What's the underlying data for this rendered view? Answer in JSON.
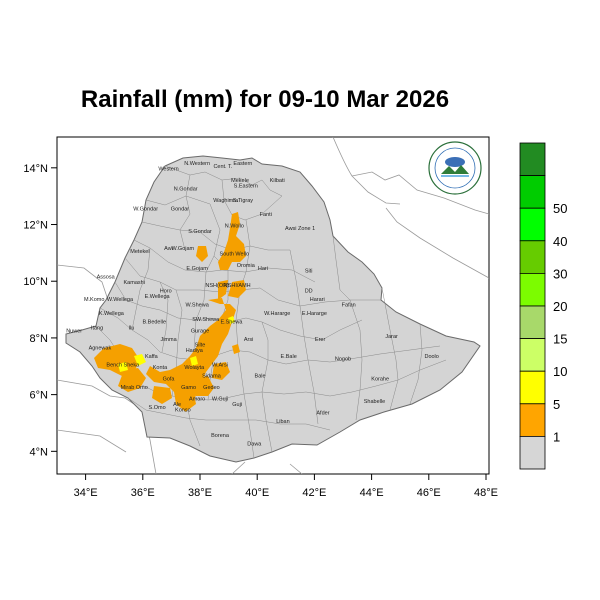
{
  "title": "Rainfall (mm) for 09-10 Mar 2026",
  "colors": {
    "land": "#d4d4d4",
    "border": "#7a7a7a",
    "rain_orange": "#f5a000",
    "rain_yellow": "#ffff00",
    "frame": "#000000"
  },
  "axes": {
    "x_ticks": [
      "34°E",
      "36°E",
      "38°E",
      "40°E",
      "42°E",
      "44°E",
      "46°E",
      "48°E"
    ],
    "y_ticks": [
      "14°N",
      "12°N",
      "10°N",
      "8°N",
      "6°N",
      "4°N"
    ]
  },
  "legend": {
    "labels": [
      "1",
      "5",
      "10",
      "15",
      "20",
      "30",
      "40",
      "50"
    ],
    "colors": [
      "#d6d6d6",
      "#ffa500",
      "#ffff00",
      "#ccff66",
      "#a8d96a",
      "#7cfc00",
      "#66cc00",
      "#00ff00",
      "#00cc00",
      "#228b22"
    ]
  },
  "regions": [
    {
      "name": "Western",
      "lon": 36.9,
      "lat": 13.9
    },
    {
      "name": "N.Western",
      "lon": 37.9,
      "lat": 14.1
    },
    {
      "name": "Cent. T.",
      "lon": 38.8,
      "lat": 14.0
    },
    {
      "name": "Eastern",
      "lon": 39.5,
      "lat": 14.1
    },
    {
      "name": "Mekele",
      "lon": 39.4,
      "lat": 13.5
    },
    {
      "name": "S.Eastern",
      "lon": 39.6,
      "lat": 13.3
    },
    {
      "name": "N.Gondar",
      "lon": 37.5,
      "lat": 13.2
    },
    {
      "name": "Kilbati",
      "lon": 40.7,
      "lat": 13.5
    },
    {
      "name": "S.Tigray",
      "lon": 39.5,
      "lat": 12.8
    },
    {
      "name": "Waghimra",
      "lon": 38.9,
      "lat": 12.8
    },
    {
      "name": "W.Gondar",
      "lon": 36.1,
      "lat": 12.5
    },
    {
      "name": "Gondar",
      "lon": 37.3,
      "lat": 12.5
    },
    {
      "name": "Fanti",
      "lon": 40.3,
      "lat": 12.3
    },
    {
      "name": "N.Wollo",
      "lon": 39.2,
      "lat": 11.9
    },
    {
      "name": "Awsi Zone 1",
      "lon": 41.5,
      "lat": 11.8
    },
    {
      "name": "S.Gondar",
      "lon": 38.0,
      "lat": 11.7
    },
    {
      "name": "Metekel",
      "lon": 35.9,
      "lat": 11.0
    },
    {
      "name": "Awi",
      "lon": 36.9,
      "lat": 11.1
    },
    {
      "name": "W.Gojam",
      "lon": 37.4,
      "lat": 11.1
    },
    {
      "name": "South Wello",
      "lon": 39.2,
      "lat": 10.9
    },
    {
      "name": "Oromia",
      "lon": 39.6,
      "lat": 10.5
    },
    {
      "name": "Hari",
      "lon": 40.2,
      "lat": 10.4
    },
    {
      "name": "E.Gojam",
      "lon": 37.9,
      "lat": 10.4
    },
    {
      "name": "Siti",
      "lon": 41.8,
      "lat": 10.3
    },
    {
      "name": "Assosa",
      "lon": 34.7,
      "lat": 10.1
    },
    {
      "name": "Kamashi",
      "lon": 35.7,
      "lat": 9.9
    },
    {
      "name": "Horo",
      "lon": 36.8,
      "lat": 9.6
    },
    {
      "name": "NSHI/AMH",
      "lon": 39.3,
      "lat": 9.8
    },
    {
      "name": "NSH(OR)",
      "lon": 38.6,
      "lat": 9.8
    },
    {
      "name": "DD",
      "lon": 41.8,
      "lat": 9.6
    },
    {
      "name": "Harari",
      "lon": 42.1,
      "lat": 9.3
    },
    {
      "name": "M.Komo",
      "lon": 34.3,
      "lat": 9.3
    },
    {
      "name": "W.Wellega",
      "lon": 35.2,
      "lat": 9.3
    },
    {
      "name": "E.Wellega",
      "lon": 36.5,
      "lat": 9.4
    },
    {
      "name": "W.Shewa",
      "lon": 37.9,
      "lat": 9.1
    },
    {
      "name": "Fafan",
      "lon": 43.2,
      "lat": 9.1
    },
    {
      "name": "K.Wellega",
      "lon": 34.9,
      "lat": 8.8
    },
    {
      "name": "W.Hararge",
      "lon": 40.7,
      "lat": 8.8
    },
    {
      "name": "E.Hararge",
      "lon": 42.0,
      "lat": 8.8
    },
    {
      "name": "B.Bedelle",
      "lon": 36.4,
      "lat": 8.5
    },
    {
      "name": "SW.Shewa",
      "lon": 38.2,
      "lat": 8.6
    },
    {
      "name": "E.Shewa",
      "lon": 39.1,
      "lat": 8.5
    },
    {
      "name": "Ilu",
      "lon": 35.6,
      "lat": 8.3
    },
    {
      "name": "Itang",
      "lon": 34.4,
      "lat": 8.3
    },
    {
      "name": "Nuwer",
      "lon": 33.6,
      "lat": 8.2
    },
    {
      "name": "Gurage",
      "lon": 38.0,
      "lat": 8.2
    },
    {
      "name": "Jarar",
      "lon": 44.7,
      "lat": 8.0
    },
    {
      "name": "Jimma",
      "lon": 36.9,
      "lat": 7.9
    },
    {
      "name": "Arsi",
      "lon": 39.7,
      "lat": 7.9
    },
    {
      "name": "Erer",
      "lon": 42.2,
      "lat": 7.9
    },
    {
      "name": "Agnewak",
      "lon": 34.5,
      "lat": 7.6
    },
    {
      "name": "Silte",
      "lon": 38.0,
      "lat": 7.7
    },
    {
      "name": "Hadiya",
      "lon": 37.8,
      "lat": 7.5
    },
    {
      "name": "Kaffa",
      "lon": 36.3,
      "lat": 7.3
    },
    {
      "name": "E.Bale",
      "lon": 41.1,
      "lat": 7.3
    },
    {
      "name": "Nogob",
      "lon": 43.0,
      "lat": 7.2
    },
    {
      "name": "Doolo",
      "lon": 46.1,
      "lat": 7.3
    },
    {
      "name": "Bench Sheka",
      "lon": 35.3,
      "lat": 7.0
    },
    {
      "name": "Konta",
      "lon": 36.6,
      "lat": 6.9
    },
    {
      "name": "Wolayta",
      "lon": 37.8,
      "lat": 6.9
    },
    {
      "name": "W.Arsi",
      "lon": 38.7,
      "lat": 7.0
    },
    {
      "name": "Korahe",
      "lon": 44.3,
      "lat": 6.5
    },
    {
      "name": "Bale",
      "lon": 40.1,
      "lat": 6.6
    },
    {
      "name": "Gofa",
      "lon": 36.9,
      "lat": 6.5
    },
    {
      "name": "Sidama",
      "lon": 38.4,
      "lat": 6.6
    },
    {
      "name": "Mirab Omo",
      "lon": 35.7,
      "lat": 6.2
    },
    {
      "name": "Gamo",
      "lon": 37.6,
      "lat": 6.2
    },
    {
      "name": "Gedeo",
      "lon": 38.4,
      "lat": 6.2
    },
    {
      "name": "Shabelle",
      "lon": 44.1,
      "lat": 5.7
    },
    {
      "name": "Amaro",
      "lon": 37.9,
      "lat": 5.8
    },
    {
      "name": "W.Guji",
      "lon": 38.7,
      "lat": 5.8
    },
    {
      "name": "S.Omo",
      "lon": 36.5,
      "lat": 5.5
    },
    {
      "name": "Ale",
      "lon": 37.2,
      "lat": 5.6
    },
    {
      "name": "Guji",
      "lon": 39.3,
      "lat": 5.6
    },
    {
      "name": "Konso",
      "lon": 37.4,
      "lat": 5.4
    },
    {
      "name": "Afder",
      "lon": 42.3,
      "lat": 5.3
    },
    {
      "name": "Liban",
      "lon": 40.9,
      "lat": 5.0
    },
    {
      "name": "Borena",
      "lon": 38.7,
      "lat": 4.5
    },
    {
      "name": "Dawa",
      "lon": 39.9,
      "lat": 4.2
    }
  ]
}
